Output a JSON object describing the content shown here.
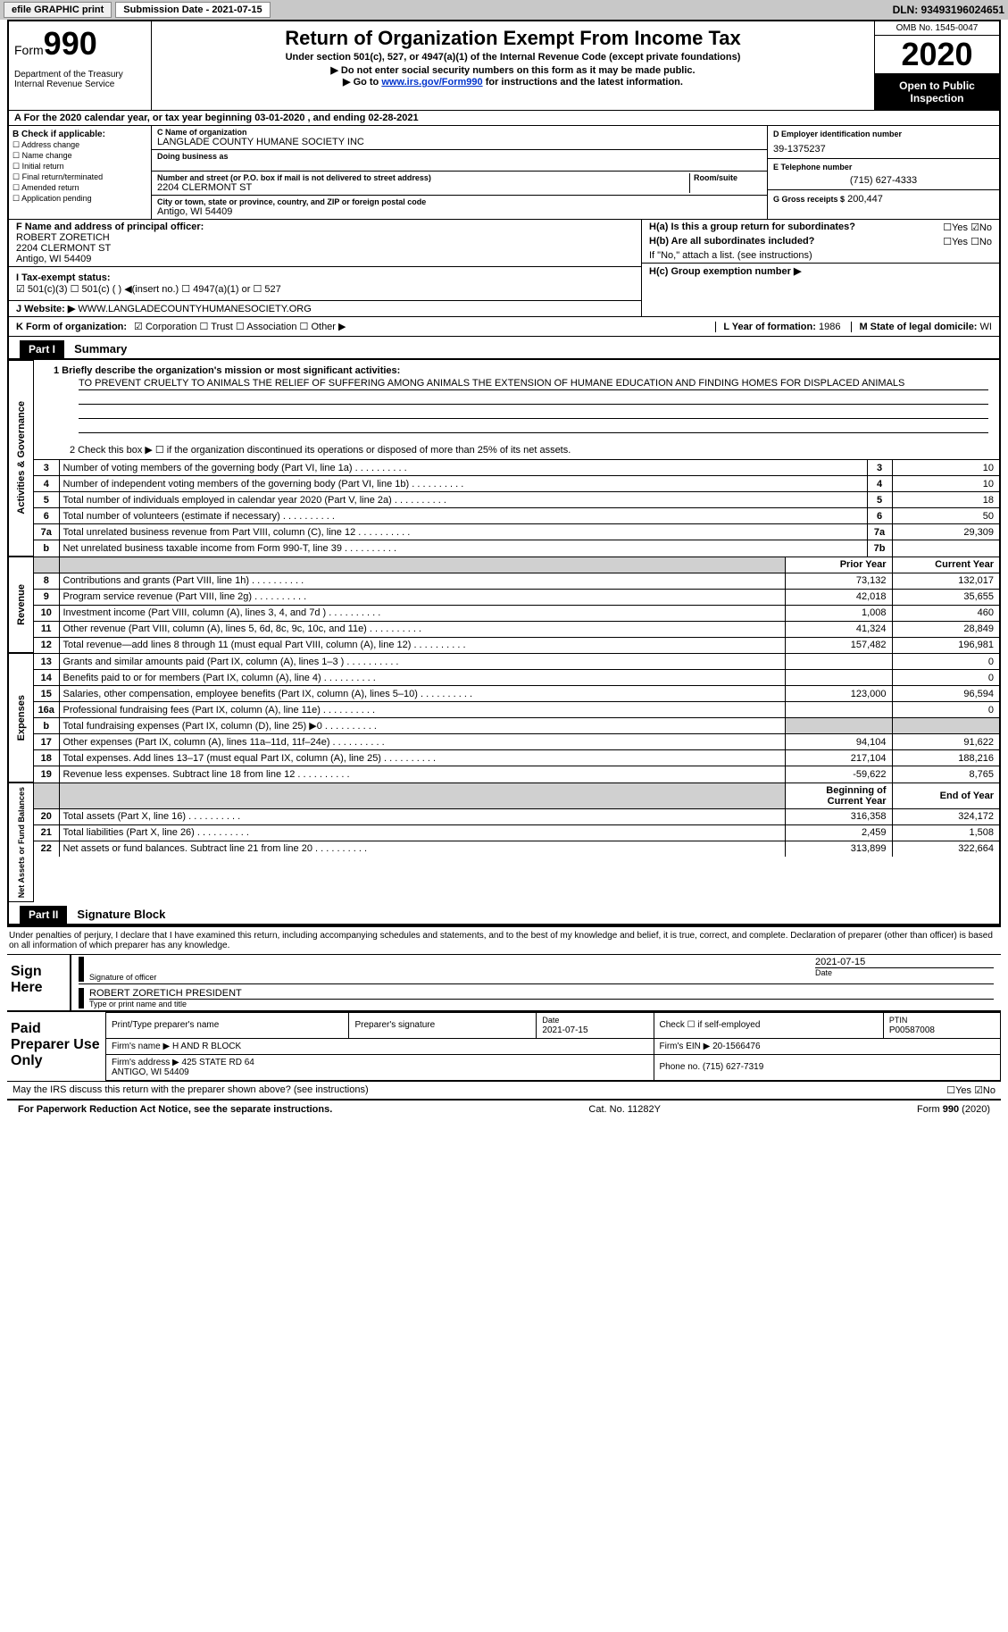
{
  "topbar": {
    "efile": "efile GRAPHIC print",
    "submission": "Submission Date - 2021-07-15",
    "dln": "DLN: 93493196024651"
  },
  "header": {
    "form_prefix": "Form",
    "form_number": "990",
    "dept": "Department of the Treasury\nInternal Revenue Service",
    "title": "Return of Organization Exempt From Income Tax",
    "subtitle": "Under section 501(c), 527, or 4947(a)(1) of the Internal Revenue Code (except private foundations)",
    "line1": "▶ Do not enter social security numbers on this form as it may be made public.",
    "line2_pre": "▶ Go to ",
    "line2_link": "www.irs.gov/Form990",
    "line2_post": " for instructions and the latest information.",
    "omb": "OMB No. 1545-0047",
    "year": "2020",
    "open": "Open to Public Inspection"
  },
  "period": "A For the 2020 calendar year, or tax year beginning 03-01-2020   , and ending 02-28-2021",
  "b": {
    "label": "B Check if applicable:",
    "items": [
      "☐ Address change",
      "☐ Name change",
      "☐ Initial return",
      "☐ Final return/terminated",
      "☐ Amended return",
      "☐ Application pending"
    ]
  },
  "c": {
    "name_label": "C Name of organization",
    "name": "LANGLADE COUNTY HUMANE SOCIETY INC",
    "dba_label": "Doing business as",
    "addr_label": "Number and street (or P.O. box if mail is not delivered to street address)",
    "room_label": "Room/suite",
    "addr": "2204 CLERMONT ST",
    "city_label": "City or town, state or province, country, and ZIP or foreign postal code",
    "city": "Antigo, WI  54409"
  },
  "d": {
    "ein_label": "D Employer identification number",
    "ein": "39-1375237",
    "phone_label": "E Telephone number",
    "phone": "(715) 627-4333",
    "gross_label": "G Gross receipts $",
    "gross": "200,447"
  },
  "f": {
    "label": "F  Name and address of principal officer:",
    "name": "ROBERT ZORETICH",
    "addr1": "2204 CLERMONT ST",
    "addr2": "Antigo, WI  54409"
  },
  "h": {
    "a_label": "H(a)  Is this a group return for subordinates?",
    "a_yesno": "☐Yes ☑No",
    "b_label": "H(b)  Are all subordinates included?",
    "b_yesno": "☐Yes ☐No",
    "b_note": "If \"No,\" attach a list. (see instructions)",
    "c_label": "H(c)  Group exemption number ▶"
  },
  "i": {
    "label": "I  Tax-exempt status:",
    "opts": "☑ 501(c)(3)   ☐ 501(c) (  ) ◀(insert no.)   ☐ 4947(a)(1) or  ☐ 527"
  },
  "j": {
    "label": "J  Website: ▶",
    "url": "WWW.LANGLADECOUNTYHUMANESOCIETY.ORG"
  },
  "k": {
    "label": "K Form of organization:",
    "opts": "☑ Corporation ☐ Trust ☐ Association ☐ Other ▶",
    "l_label": "L Year of formation:",
    "l_val": "1986",
    "m_label": "M State of legal domicile:",
    "m_val": "WI"
  },
  "part1": {
    "title": "Part I",
    "name": "Summary",
    "mission_label": "1  Briefly describe the organization's mission or most significant activities:",
    "mission": "TO PREVENT CRUELTY TO ANIMALS THE RELIEF OF SUFFERING AMONG ANIMALS THE EXTENSION OF HUMANE EDUCATION AND FINDING HOMES FOR DISPLACED ANIMALS",
    "line2": "2    Check this box ▶ ☐  if the organization discontinued its operations or disposed of more than 25% of its net assets."
  },
  "governance_rows": [
    {
      "n": "3",
      "label": "Number of voting members of the governing body (Part VI, line 1a)",
      "box": "3",
      "val": "10"
    },
    {
      "n": "4",
      "label": "Number of independent voting members of the governing body (Part VI, line 1b)",
      "box": "4",
      "val": "10"
    },
    {
      "n": "5",
      "label": "Total number of individuals employed in calendar year 2020 (Part V, line 2a)",
      "box": "5",
      "val": "18"
    },
    {
      "n": "6",
      "label": "Total number of volunteers (estimate if necessary)",
      "box": "6",
      "val": "50"
    },
    {
      "n": "7a",
      "label": "Total unrelated business revenue from Part VIII, column (C), line 12",
      "box": "7a",
      "val": "29,309"
    },
    {
      "n": "b",
      "label": "Net unrelated business taxable income from Form 990-T, line 39",
      "box": "7b",
      "val": ""
    }
  ],
  "revenue_header": {
    "prior": "Prior Year",
    "current": "Current Year"
  },
  "revenue_rows": [
    {
      "n": "8",
      "label": "Contributions and grants (Part VIII, line 1h)",
      "prior": "73,132",
      "curr": "132,017"
    },
    {
      "n": "9",
      "label": "Program service revenue (Part VIII, line 2g)",
      "prior": "42,018",
      "curr": "35,655"
    },
    {
      "n": "10",
      "label": "Investment income (Part VIII, column (A), lines 3, 4, and 7d )",
      "prior": "1,008",
      "curr": "460"
    },
    {
      "n": "11",
      "label": "Other revenue (Part VIII, column (A), lines 5, 6d, 8c, 9c, 10c, and 11e)",
      "prior": "41,324",
      "curr": "28,849"
    },
    {
      "n": "12",
      "label": "Total revenue—add lines 8 through 11 (must equal Part VIII, column (A), line 12)",
      "prior": "157,482",
      "curr": "196,981"
    }
  ],
  "expense_rows": [
    {
      "n": "13",
      "label": "Grants and similar amounts paid (Part IX, column (A), lines 1–3 )",
      "prior": "",
      "curr": "0"
    },
    {
      "n": "14",
      "label": "Benefits paid to or for members (Part IX, column (A), line 4)",
      "prior": "",
      "curr": "0"
    },
    {
      "n": "15",
      "label": "Salaries, other compensation, employee benefits (Part IX, column (A), lines 5–10)",
      "prior": "123,000",
      "curr": "96,594"
    },
    {
      "n": "16a",
      "label": "Professional fundraising fees (Part IX, column (A), line 11e)",
      "prior": "",
      "curr": "0"
    },
    {
      "n": "b",
      "label": "Total fundraising expenses (Part IX, column (D), line 25) ▶0",
      "prior": "shade",
      "curr": "shade"
    },
    {
      "n": "17",
      "label": "Other expenses (Part IX, column (A), lines 11a–11d, 11f–24e)",
      "prior": "94,104",
      "curr": "91,622"
    },
    {
      "n": "18",
      "label": "Total expenses. Add lines 13–17 (must equal Part IX, column (A), line 25)",
      "prior": "217,104",
      "curr": "188,216"
    },
    {
      "n": "19",
      "label": "Revenue less expenses. Subtract line 18 from line 12",
      "prior": "-59,622",
      "curr": "8,765"
    }
  ],
  "netassets_header": {
    "begin": "Beginning of Current Year",
    "end": "End of Year"
  },
  "netassets_rows": [
    {
      "n": "20",
      "label": "Total assets (Part X, line 16)",
      "prior": "316,358",
      "curr": "324,172"
    },
    {
      "n": "21",
      "label": "Total liabilities (Part X, line 26)",
      "prior": "2,459",
      "curr": "1,508"
    },
    {
      "n": "22",
      "label": "Net assets or fund balances. Subtract line 21 from line 20",
      "prior": "313,899",
      "curr": "322,664"
    }
  ],
  "side_labels": {
    "gov": "Activities & Governance",
    "rev": "Revenue",
    "exp": "Expenses",
    "net": "Net Assets or Fund Balances"
  },
  "part2": {
    "title": "Part II",
    "name": "Signature Block",
    "declaration": "Under penalties of perjury, I declare that I have examined this return, including accompanying schedules and statements, and to the best of my knowledge and belief, it is true, correct, and complete. Declaration of preparer (other than officer) is based on all information of which preparer has any knowledge."
  },
  "sign": {
    "here": "Sign Here",
    "sig_label": "Signature of officer",
    "date": "2021-07-15",
    "date_label": "Date",
    "name": "ROBERT ZORETICH PRESIDENT",
    "name_label": "Type or print name and title"
  },
  "preparer": {
    "label": "Paid Preparer Use Only",
    "h1": "Print/Type preparer's name",
    "h2": "Preparer's signature",
    "h3_label": "Date",
    "h3": "2021-07-15",
    "h4": "Check ☐ if self-employed",
    "h5_label": "PTIN",
    "h5": "P00587008",
    "firm_name_label": "Firm's name    ▶",
    "firm_name": "H AND R BLOCK",
    "firm_ein_label": "Firm's EIN ▶",
    "firm_ein": "20-1566476",
    "firm_addr_label": "Firm's address ▶",
    "firm_addr": "425 STATE RD 64\nANTIGO, WI  54409",
    "phone_label": "Phone no.",
    "phone": "(715) 627-7319"
  },
  "discuss": {
    "text": "May the IRS discuss this return with the preparer shown above? (see instructions)",
    "yesno": "☐Yes ☑No"
  },
  "footer": {
    "left": "For Paperwork Reduction Act Notice, see the separate instructions.",
    "center": "Cat. No. 11282Y",
    "right": "Form 990 (2020)"
  }
}
